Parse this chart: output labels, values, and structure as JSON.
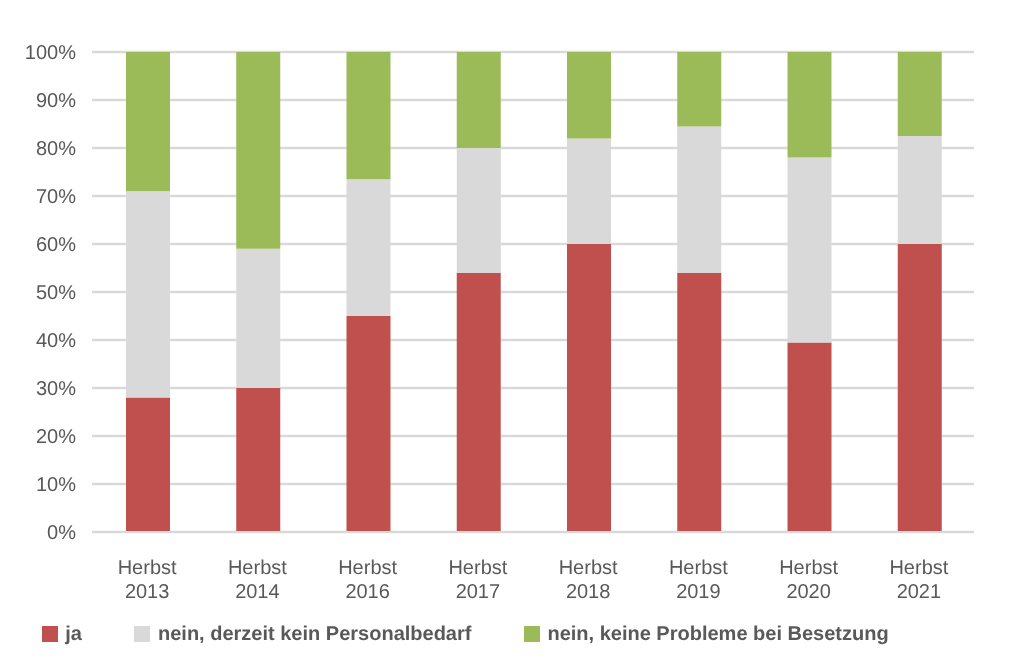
{
  "chart_data": {
    "type": "bar",
    "stacked": true,
    "categories": [
      "Herbst 2013",
      "Herbst 2014",
      "Herbst 2016",
      "Herbst 2017",
      "Herbst 2018",
      "Herbst 2019",
      "Herbst 2020",
      "Herbst 2021"
    ],
    "series": [
      {
        "name": "ja",
        "color": "#c0504d",
        "values": [
          28,
          30,
          45,
          54,
          60,
          54,
          39.5,
          60
        ]
      },
      {
        "name": "nein, derzeit kein Personalbedarf",
        "color": "#d9d9d9",
        "values": [
          43,
          29,
          28.5,
          26,
          22,
          30.5,
          38.5,
          22.5
        ]
      },
      {
        "name": "nein, keine Probleme bei Besetzung",
        "color": "#9bbb59",
        "values": [
          29,
          41,
          26.5,
          20,
          18,
          15.5,
          22,
          17.5
        ]
      }
    ],
    "ylim": [
      0,
      100
    ],
    "yticks": [
      {
        "value": 0,
        "label": "0%"
      },
      {
        "value": 10,
        "label": "10%"
      },
      {
        "value": 20,
        "label": "20%"
      },
      {
        "value": 30,
        "label": "30%"
      },
      {
        "value": 40,
        "label": "40%"
      },
      {
        "value": 50,
        "label": "50%"
      },
      {
        "value": 60,
        "label": "60%"
      },
      {
        "value": 70,
        "label": "70%"
      },
      {
        "value": 80,
        "label": "80%"
      },
      {
        "value": 90,
        "label": "90%"
      },
      {
        "value": 100,
        "label": "100%"
      }
    ],
    "grid": "y",
    "legend": "bottom"
  }
}
